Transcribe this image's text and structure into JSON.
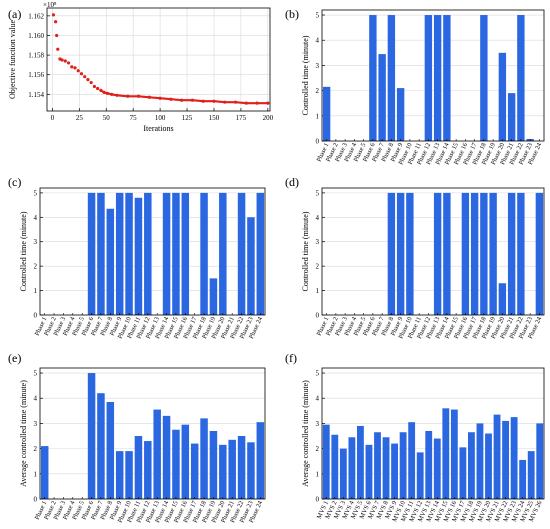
{
  "chart_data": [
    {
      "id": "a",
      "panel_label": "(a)",
      "type": "scatter",
      "xlabel": "Iterations",
      "ylabel": "Objective function value",
      "y_multiplier": "×10⁸",
      "xlim": [
        -5,
        202
      ],
      "ylim": [
        1.1523,
        1.1628
      ],
      "xticks": [
        0,
        25,
        50,
        75,
        100,
        125,
        150,
        175,
        200
      ],
      "yticks": [
        1.154,
        1.156,
        1.158,
        1.16,
        1.162
      ],
      "ytick_labels": [
        "1.154",
        "1.156",
        "1.158",
        "1.160",
        "1.162"
      ],
      "grid": true,
      "color": "#e0201a",
      "points": [
        [
          1,
          1.1621
        ],
        [
          3,
          1.1614
        ],
        [
          4,
          1.16
        ],
        [
          5,
          1.1586
        ],
        [
          7,
          1.1576
        ],
        [
          9,
          1.1575
        ],
        [
          12,
          1.1574
        ],
        [
          15,
          1.1572
        ],
        [
          18,
          1.1568
        ],
        [
          21,
          1.1567
        ],
        [
          24,
          1.1564
        ],
        [
          27,
          1.1561
        ],
        [
          30,
          1.1558
        ],
        [
          33,
          1.1555
        ],
        [
          36,
          1.1552
        ],
        [
          39,
          1.1548
        ],
        [
          42,
          1.1546
        ],
        [
          45,
          1.1544
        ],
        [
          48,
          1.1542
        ],
        [
          51,
          1.1541
        ],
        [
          55,
          1.154
        ],
        [
          60,
          1.1539
        ],
        [
          70,
          1.1538
        ],
        [
          80,
          1.1538
        ],
        [
          90,
          1.1537
        ],
        [
          100,
          1.1536
        ],
        [
          110,
          1.1535
        ],
        [
          120,
          1.1534
        ],
        [
          130,
          1.1534
        ],
        [
          140,
          1.1533
        ],
        [
          150,
          1.1533
        ],
        [
          160,
          1.1532
        ],
        [
          170,
          1.1532
        ],
        [
          180,
          1.1531
        ],
        [
          190,
          1.1531
        ],
        [
          200,
          1.1531
        ]
      ]
    },
    {
      "id": "b",
      "panel_label": "(b)",
      "type": "bar",
      "ylabel": "Controlled time (minute)",
      "ylim": [
        0,
        5.2
      ],
      "yticks": [
        0,
        1,
        2,
        3,
        4,
        5
      ],
      "grid": true,
      "color": "#2b67e0",
      "categories": [
        "Phase 1",
        "Phase 2",
        "Phase 3",
        "Phase 4",
        "Phase 5",
        "Phase 6",
        "Phase 7",
        "Phase 8",
        "Phase 9",
        "Phase 10",
        "Phase 11",
        "Phase 12",
        "Phase 13",
        "Phase 14",
        "Phase 15",
        "Phase 16",
        "Phase 17",
        "Phase 18",
        "Phase 19",
        "Phase 20",
        "Phase 21",
        "Phase 22",
        "Phase 23",
        "Phase 24"
      ],
      "values": [
        2.15,
        0,
        0,
        0,
        0,
        5,
        3.45,
        5,
        2.1,
        0,
        0,
        5,
        5,
        5,
        0,
        0,
        0,
        5,
        0,
        3.5,
        1.9,
        5,
        0.08,
        0
      ]
    },
    {
      "id": "c",
      "panel_label": "(c)",
      "type": "bar",
      "ylabel": "Controlled time (minute)",
      "ylim": [
        0,
        5.2
      ],
      "yticks": [
        0,
        1,
        2,
        3,
        4,
        5
      ],
      "grid": true,
      "color": "#2b67e0",
      "categories": [
        "Phase 1",
        "Phase 2",
        "Phase 3",
        "Phase 4",
        "Phase 5",
        "Phase 6",
        "Phase 7",
        "Phase 8",
        "Phase 9",
        "Phase 10",
        "Phase 11",
        "Phase 12",
        "Phase 13",
        "Phase 14",
        "Phase 15",
        "Phase 16",
        "Phase 17",
        "Phase 18",
        "Phase 19",
        "Phase 20",
        "Phase 21",
        "Phase 22",
        "Phase 23",
        "Phase 24"
      ],
      "values": [
        0,
        0,
        0,
        0,
        0,
        5,
        5,
        4.35,
        5,
        5,
        4.8,
        5,
        0,
        5,
        5,
        5,
        0,
        5,
        1.5,
        5,
        0,
        5,
        4.0,
        5
      ]
    },
    {
      "id": "d",
      "panel_label": "(d)",
      "type": "bar",
      "ylabel": "Controlled time (minute)",
      "ylim": [
        0,
        5.2
      ],
      "yticks": [
        0,
        1,
        2,
        3,
        4,
        5
      ],
      "grid": true,
      "color": "#2b67e0",
      "categories": [
        "Phase 1",
        "Phase 2",
        "Phase 3",
        "Phase 4",
        "Phase 5",
        "Phase 6",
        "Phase 7",
        "Phase 8",
        "Phase 9",
        "Phase 10",
        "Phase 11",
        "Phase 12",
        "Phase 13",
        "Phase 14",
        "Phase 15",
        "Phase 16",
        "Phase 17",
        "Phase 18",
        "Phase 19",
        "Phase 20",
        "Phase 21",
        "Phase 22",
        "Phase 23",
        "Phase 24"
      ],
      "values": [
        0,
        0,
        0,
        0,
        0,
        0,
        0,
        5,
        5,
        5,
        0,
        0,
        5,
        5,
        0,
        5,
        5,
        5,
        5,
        1.3,
        5,
        5,
        0,
        5
      ]
    },
    {
      "id": "e",
      "panel_label": "(e)",
      "type": "bar",
      "ylabel": "Average controlled time (minute)",
      "ylim": [
        0,
        5.2
      ],
      "yticks": [
        0,
        1,
        2,
        3,
        4,
        5
      ],
      "grid": true,
      "color": "#2b67e0",
      "categories": [
        "Phase 1",
        "Phase 2",
        "Phase 3",
        "Phase 4",
        "Phase 5",
        "Phase 6",
        "Phase 7",
        "Phase 8",
        "Phase 9",
        "Phase 10",
        "Phase 11",
        "Phase 12",
        "Phase 13",
        "Phase 14",
        "Phase 15",
        "Phase 16",
        "Phase 17",
        "Phase 18",
        "Phase 19",
        "Phase 20",
        "Phase 21",
        "Phase 22",
        "Phase 23",
        "Phase 24"
      ],
      "values": [
        2.1,
        0,
        0,
        0,
        0,
        5.0,
        4.2,
        3.85,
        1.9,
        1.9,
        2.5,
        2.3,
        3.55,
        3.3,
        2.75,
        2.95,
        2.2,
        3.2,
        2.7,
        2.15,
        2.35,
        2.5,
        2.25,
        3.05
      ]
    },
    {
      "id": "f",
      "panel_label": "(f)",
      "type": "bar",
      "ylabel": "Average controlled time (minute)",
      "ylim": [
        0,
        5.2
      ],
      "yticks": [
        0,
        1,
        2,
        3,
        4,
        5
      ],
      "grid": true,
      "color": "#2b67e0",
      "categories": [
        "MVS 1",
        "MVS 2",
        "MVS 3",
        "MVS 4",
        "MVS 5",
        "MVS 6",
        "MVS 7",
        "MVS 8",
        "MVS 9",
        "MVS 10",
        "MVS 11",
        "MVS 12",
        "MVS 13",
        "MVS 14",
        "MVS 15",
        "MVS 16",
        "MVS 17",
        "MVS 18",
        "MVS 19",
        "MVS 20",
        "MVS 21",
        "MVS 22",
        "MVS 23",
        "MVS 24",
        "MVS 25",
        "MVS 26"
      ],
      "values": [
        2.95,
        2.55,
        2.0,
        2.45,
        2.9,
        2.15,
        2.65,
        2.45,
        2.2,
        2.65,
        3.05,
        1.85,
        2.7,
        2.4,
        3.6,
        3.55,
        2.05,
        2.65,
        3.0,
        2.6,
        3.35,
        3.1,
        3.25,
        1.55,
        1.9,
        3.0
      ]
    }
  ]
}
